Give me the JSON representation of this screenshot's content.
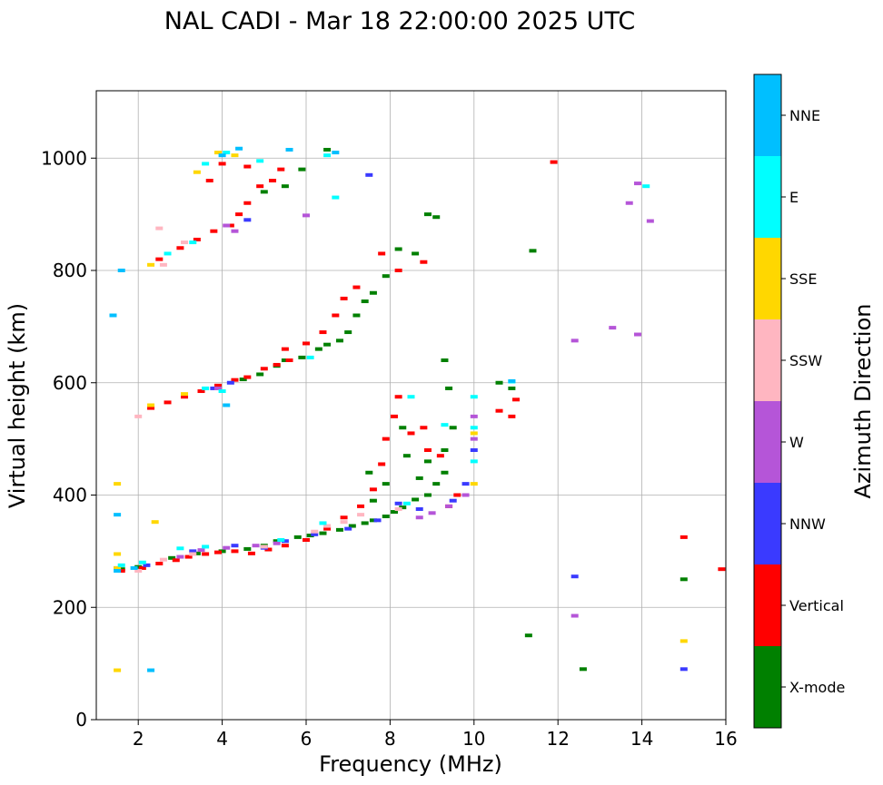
{
  "chart_data": {
    "type": "scatter",
    "title": "NAL CADI - Mar 18 22:00:00 2025 UTC",
    "xlabel": "Frequency (MHz)",
    "ylabel": "Virtual height (km)",
    "xlim": [
      1.0,
      16.0
    ],
    "ylim": [
      0,
      1120
    ],
    "xticks": [
      2,
      4,
      6,
      8,
      10,
      12,
      14,
      16
    ],
    "yticks": [
      0,
      200,
      400,
      600,
      800,
      1000
    ],
    "grid": true,
    "colorbar": {
      "label": "Azimuth Direction",
      "categories": [
        {
          "name": "X-mode",
          "color": "#008000"
        },
        {
          "name": "Vertical",
          "color": "#ff0000"
        },
        {
          "name": "NNW",
          "color": "#3a3aff"
        },
        {
          "name": "W",
          "color": "#b555d8"
        },
        {
          "name": "SSW",
          "color": "#ffb6c1"
        },
        {
          "name": "SSE",
          "color": "#ffd700"
        },
        {
          "name": "E",
          "color": "#00ffff"
        },
        {
          "name": "NNE",
          "color": "#00bfff"
        }
      ]
    },
    "series": [
      {
        "name": "X-mode",
        "points": [
          [
            1.6,
            268
          ],
          [
            2.0,
            272
          ],
          [
            2.8,
            288
          ],
          [
            3.4,
            296
          ],
          [
            4.0,
            300
          ],
          [
            4.6,
            304
          ],
          [
            5.0,
            310
          ],
          [
            5.3,
            318
          ],
          [
            5.8,
            325
          ],
          [
            6.1,
            328
          ],
          [
            6.4,
            332
          ],
          [
            6.8,
            338
          ],
          [
            7.1,
            345
          ],
          [
            7.4,
            350
          ],
          [
            7.6,
            355
          ],
          [
            7.9,
            362
          ],
          [
            8.1,
            370
          ],
          [
            8.3,
            378
          ],
          [
            8.6,
            392
          ],
          [
            8.9,
            400
          ],
          [
            9.1,
            420
          ],
          [
            9.3,
            440
          ],
          [
            9.3,
            480
          ],
          [
            9.5,
            520
          ],
          [
            9.4,
            590
          ],
          [
            9.3,
            640
          ],
          [
            8.9,
            460
          ],
          [
            8.7,
            430
          ],
          [
            8.4,
            470
          ],
          [
            8.3,
            520
          ],
          [
            7.9,
            420
          ],
          [
            7.6,
            390
          ],
          [
            7.5,
            440
          ],
          [
            4.5,
            606
          ],
          [
            4.9,
            615
          ],
          [
            5.3,
            630
          ],
          [
            5.5,
            640
          ],
          [
            5.9,
            645
          ],
          [
            6.3,
            660
          ],
          [
            6.5,
            668
          ],
          [
            6.8,
            675
          ],
          [
            7.0,
            690
          ],
          [
            7.2,
            720
          ],
          [
            7.4,
            745
          ],
          [
            7.6,
            760
          ],
          [
            7.9,
            790
          ],
          [
            8.2,
            838
          ],
          [
            8.6,
            830
          ],
          [
            8.9,
            900
          ],
          [
            9.1,
            895
          ],
          [
            5.0,
            940
          ],
          [
            5.5,
            950
          ],
          [
            5.9,
            980
          ],
          [
            6.5,
            1015
          ],
          [
            10.6,
            600
          ],
          [
            11.3,
            150
          ],
          [
            11.4,
            835
          ],
          [
            12.6,
            90
          ],
          [
            15.0,
            250
          ],
          [
            10.9,
            590
          ]
        ]
      },
      {
        "name": "Vertical",
        "points": [
          [
            1.6,
            265
          ],
          [
            2.1,
            270
          ],
          [
            2.5,
            278
          ],
          [
            2.9,
            284
          ],
          [
            3.2,
            290
          ],
          [
            3.6,
            295
          ],
          [
            3.9,
            298
          ],
          [
            4.3,
            300
          ],
          [
            4.7,
            296
          ],
          [
            5.1,
            303
          ],
          [
            5.5,
            310
          ],
          [
            6.0,
            320
          ],
          [
            6.5,
            340
          ],
          [
            6.9,
            360
          ],
          [
            7.3,
            380
          ],
          [
            7.6,
            410
          ],
          [
            7.8,
            455
          ],
          [
            7.9,
            500
          ],
          [
            8.1,
            540
          ],
          [
            8.2,
            575
          ],
          [
            8.5,
            510
          ],
          [
            8.8,
            520
          ],
          [
            8.9,
            480
          ],
          [
            9.2,
            470
          ],
          [
            9.4,
            380
          ],
          [
            9.6,
            400
          ],
          [
            2.3,
            555
          ],
          [
            2.7,
            565
          ],
          [
            3.1,
            575
          ],
          [
            3.5,
            585
          ],
          [
            3.9,
            595
          ],
          [
            4.3,
            605
          ],
          [
            4.6,
            610
          ],
          [
            5.0,
            625
          ],
          [
            5.3,
            632
          ],
          [
            5.6,
            640
          ],
          [
            5.5,
            660
          ],
          [
            6.0,
            670
          ],
          [
            6.4,
            690
          ],
          [
            6.7,
            720
          ],
          [
            6.9,
            750
          ],
          [
            7.2,
            770
          ],
          [
            7.8,
            830
          ],
          [
            8.2,
            800
          ],
          [
            8.8,
            815
          ],
          [
            2.5,
            820
          ],
          [
            3.0,
            840
          ],
          [
            3.4,
            855
          ],
          [
            3.8,
            870
          ],
          [
            4.2,
            880
          ],
          [
            4.4,
            900
          ],
          [
            4.6,
            920
          ],
          [
            4.9,
            950
          ],
          [
            5.2,
            960
          ],
          [
            5.4,
            980
          ],
          [
            3.7,
            960
          ],
          [
            4.0,
            990
          ],
          [
            4.6,
            985
          ],
          [
            10.6,
            550
          ],
          [
            10.9,
            540
          ],
          [
            11.0,
            570
          ],
          [
            11.9,
            993
          ],
          [
            15.0,
            325
          ],
          [
            15.9,
            268
          ]
        ]
      },
      {
        "name": "NNW",
        "points": [
          [
            1.5,
            270
          ],
          [
            2.2,
            275
          ],
          [
            3.3,
            300
          ],
          [
            4.3,
            310
          ],
          [
            5.0,
            306
          ],
          [
            5.5,
            318
          ],
          [
            6.2,
            330
          ],
          [
            7.0,
            340
          ],
          [
            7.7,
            355
          ],
          [
            8.2,
            385
          ],
          [
            8.7,
            375
          ],
          [
            9.5,
            390
          ],
          [
            10.0,
            480
          ],
          [
            9.8,
            420
          ],
          [
            3.8,
            590
          ],
          [
            4.2,
            600
          ],
          [
            4.6,
            890
          ],
          [
            7.5,
            970
          ],
          [
            12.4,
            255
          ],
          [
            15.0,
            90
          ]
        ]
      },
      {
        "name": "W",
        "points": [
          [
            3.0,
            290
          ],
          [
            3.5,
            302
          ],
          [
            4.1,
            306
          ],
          [
            4.8,
            310
          ],
          [
            5.3,
            314
          ],
          [
            8.7,
            360
          ],
          [
            9.0,
            368
          ],
          [
            9.4,
            380
          ],
          [
            9.8,
            400
          ],
          [
            10.0,
            500
          ],
          [
            10.0,
            540
          ],
          [
            3.9,
            590
          ],
          [
            4.3,
            870
          ],
          [
            4.1,
            880
          ],
          [
            6.0,
            898
          ],
          [
            12.4,
            675
          ],
          [
            12.4,
            185
          ],
          [
            13.3,
            698
          ],
          [
            13.7,
            920
          ],
          [
            13.9,
            955
          ],
          [
            13.9,
            686
          ],
          [
            14.2,
            888
          ]
        ]
      },
      {
        "name": "SSW",
        "points": [
          [
            2.0,
            265
          ],
          [
            2.6,
            285
          ],
          [
            3.3,
            295
          ],
          [
            5.0,
            308
          ],
          [
            6.2,
            335
          ],
          [
            6.5,
            345
          ],
          [
            6.9,
            352
          ],
          [
            7.3,
            365
          ],
          [
            8.2,
            375
          ],
          [
            2.0,
            540
          ],
          [
            2.6,
            810
          ],
          [
            3.1,
            850
          ],
          [
            2.5,
            875
          ]
        ]
      },
      {
        "name": "SSE",
        "points": [
          [
            1.5,
            270
          ],
          [
            1.5,
            295
          ],
          [
            1.5,
            420
          ],
          [
            1.5,
            88
          ],
          [
            2.4,
            352
          ],
          [
            2.3,
            560
          ],
          [
            3.1,
            580
          ],
          [
            2.3,
            810
          ],
          [
            3.4,
            975
          ],
          [
            3.9,
            1010
          ],
          [
            4.3,
            1005
          ],
          [
            10.0,
            420
          ],
          [
            10.0,
            510
          ],
          [
            15.0,
            140
          ]
        ]
      },
      {
        "name": "E",
        "points": [
          [
            1.6,
            275
          ],
          [
            2.1,
            280
          ],
          [
            3.0,
            305
          ],
          [
            3.6,
            308
          ],
          [
            5.4,
            320
          ],
          [
            6.4,
            350
          ],
          [
            8.4,
            385
          ],
          [
            8.5,
            575
          ],
          [
            9.3,
            525
          ],
          [
            10.0,
            460
          ],
          [
            10.0,
            575
          ],
          [
            10.0,
            520
          ],
          [
            3.6,
            590
          ],
          [
            4.0,
            585
          ],
          [
            6.1,
            645
          ],
          [
            2.7,
            830
          ],
          [
            3.3,
            850
          ],
          [
            3.6,
            990
          ],
          [
            4.1,
            1010
          ],
          [
            4.9,
            995
          ],
          [
            6.5,
            1005
          ],
          [
            6.7,
            930
          ],
          [
            10.9,
            602
          ],
          [
            14.1,
            950
          ]
        ]
      },
      {
        "name": "NNE",
        "points": [
          [
            1.5,
            265
          ],
          [
            1.6,
            800
          ],
          [
            1.4,
            720
          ],
          [
            1.5,
            365
          ],
          [
            2.3,
            88
          ],
          [
            1.9,
            270
          ],
          [
            4.0,
            1005
          ],
          [
            4.4,
            1017
          ],
          [
            6.7,
            1010
          ],
          [
            4.1,
            560
          ],
          [
            5.6,
            1015
          ],
          [
            10.9,
            603
          ]
        ]
      }
    ]
  }
}
